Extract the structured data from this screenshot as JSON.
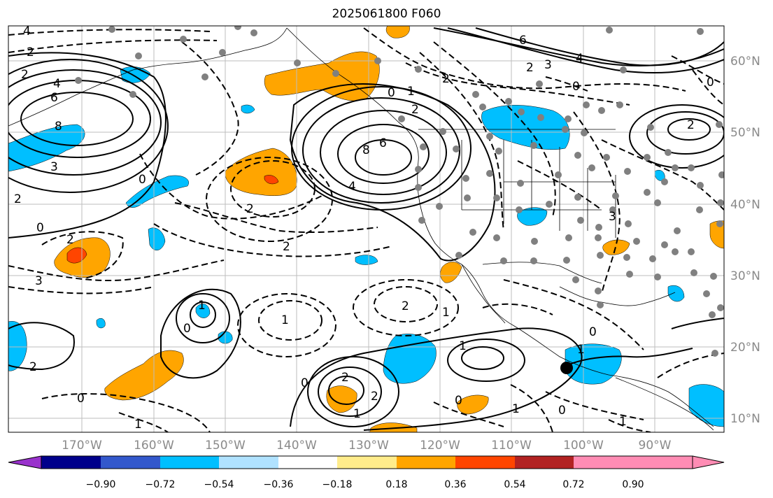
{
  "title": "2025061800 F060",
  "lon_ticks": [
    "170°W",
    "160°W",
    "150°W",
    "140°W",
    "130°W",
    "120°W",
    "110°W",
    "100°W",
    "90°W"
  ],
  "lat_ticks": [
    "60°N",
    "50°N",
    "40°N",
    "30°N",
    "20°N",
    "10°N"
  ],
  "colorbar": {
    "colors": [
      "#9932cc",
      "#00008b",
      "#3358cc",
      "#00bfff",
      "#b0e2ff",
      "#ffffff",
      "#ffec8b",
      "#ffa500",
      "#ff4500",
      "#b22222",
      "#ff8cb4"
    ],
    "labels": [
      "−0.90",
      "−0.72",
      "−0.54",
      "−0.36",
      "−0.18",
      "0.18",
      "0.36",
      "0.54",
      "0.72",
      "0.90"
    ]
  },
  "contour_labels": [
    "4",
    "2",
    "2",
    "6",
    "8",
    "3",
    "0",
    "2",
    "0",
    "4",
    "8",
    "6",
    "0",
    "1",
    "2",
    "4",
    "2",
    "2",
    "3",
    "2",
    "1",
    "1",
    "0",
    "2",
    "1",
    "2",
    "0",
    "1",
    "2",
    "2",
    "1",
    "0",
    "1",
    "0",
    "6",
    "3",
    "2",
    "0",
    "2",
    "1",
    "0",
    "3",
    "2",
    "1"
  ]
}
